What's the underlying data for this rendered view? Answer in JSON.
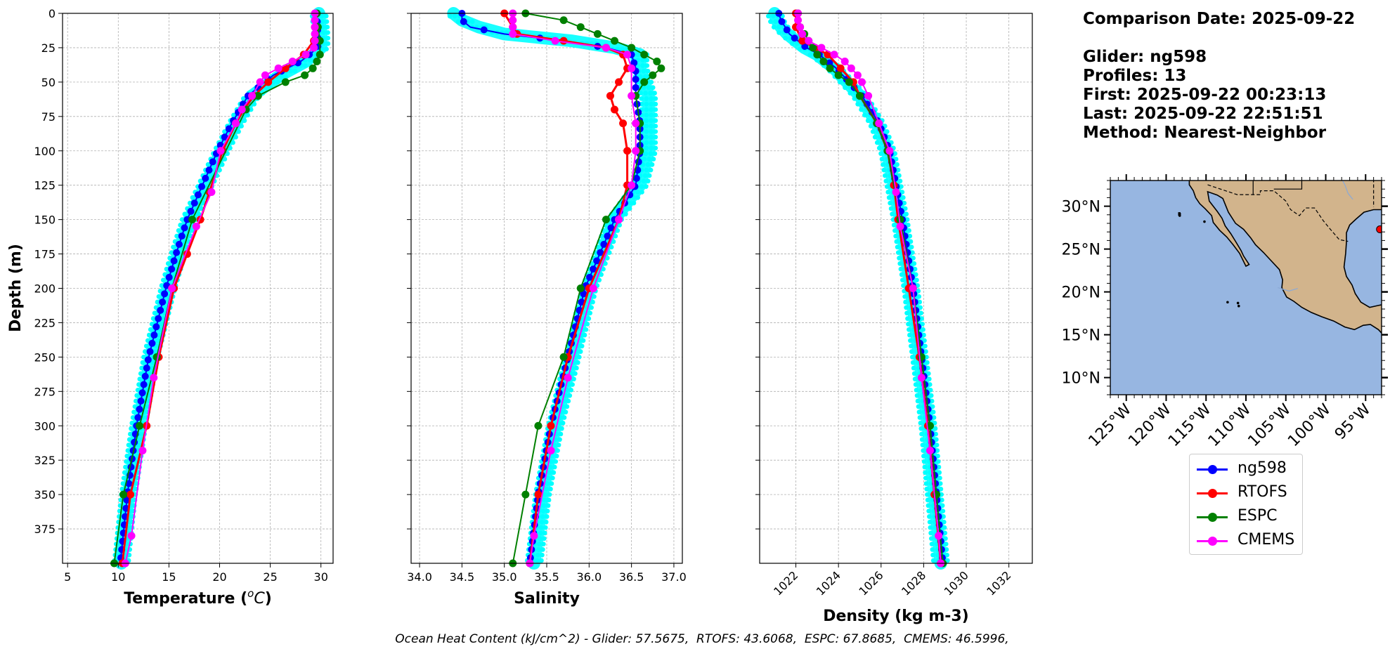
{
  "info": {
    "comparison_date": "Comparison Date: 2025-09-22",
    "glider": "Glider: ng598",
    "profiles": "Profiles: 13",
    "first": "First: 2025-09-22 00:23:13",
    "last": "Last: 2025-09-22 22:51:51",
    "method": "Method: Nearest-Neighbor"
  },
  "ohc": {
    "label": "Ocean Heat Content (kJ/cm^2) - Glider: 57.5675,  RTOFS: 43.6068,  ESPC: 67.8685,  CMEMS: 46.5996,"
  },
  "legend": [
    {
      "name": "ng598",
      "color": "#0000ff"
    },
    {
      "name": "RTOFS",
      "color": "#ff0000"
    },
    {
      "name": "ESPC",
      "color": "#008000"
    },
    {
      "name": "CMEMS",
      "color": "#ff00ff"
    }
  ],
  "chart_data": [
    {
      "type": "line",
      "title": "",
      "xlabel": "Temperature (°C)",
      "ylabel": "Depth (m)",
      "xlim": [
        4.5,
        31.2
      ],
      "ylim": [
        400,
        0
      ],
      "xticks": [
        5,
        10,
        15,
        20,
        25,
        30
      ],
      "yticks": [
        0,
        25,
        50,
        75,
        100,
        125,
        150,
        175,
        200,
        225,
        250,
        275,
        300,
        325,
        350,
        375
      ],
      "grid": true,
      "series": [
        {
          "name": "glider profiles",
          "color": "#00ffff",
          "depth": [
            0,
            15,
            25,
            35,
            45,
            60,
            80,
            100,
            125,
            150,
            175,
            200,
            250,
            300,
            350,
            400
          ],
          "values": [
            29.8,
            30.0,
            30.0,
            28.5,
            26.0,
            23.2,
            21.6,
            20.2,
            18.6,
            17.0,
            15.9,
            14.9,
            13.2,
            12.0,
            11.0,
            10.3
          ]
        },
        {
          "name": "ng598",
          "color": "#0000ff",
          "depth": [
            0,
            15,
            25,
            35,
            45,
            60,
            80,
            100,
            125,
            150,
            175,
            200,
            250,
            300,
            350,
            400
          ],
          "values": [
            29.6,
            29.7,
            29.7,
            28.0,
            25.3,
            22.8,
            21.2,
            19.8,
            18.3,
            16.8,
            15.7,
            14.7,
            13.0,
            11.8,
            10.9,
            10.2
          ]
        },
        {
          "name": "RTOFS",
          "color": "#ff0000",
          "depth": [
            0,
            10,
            20,
            30,
            40,
            50,
            60,
            70,
            80,
            100,
            130,
            150,
            175,
            200,
            250,
            300,
            350,
            400
          ],
          "values": [
            29.5,
            29.4,
            29.3,
            28.3,
            26.5,
            24.8,
            23.4,
            22.4,
            21.6,
            20.3,
            19.0,
            18.1,
            16.8,
            15.5,
            14.0,
            12.8,
            11.2,
            10.4
          ]
        },
        {
          "name": "ESPC",
          "color": "#008000",
          "depth": [
            0,
            10,
            20,
            30,
            35,
            40,
            45,
            50,
            60,
            70,
            150,
            200,
            250,
            300,
            350,
            400
          ],
          "values": [
            29.6,
            29.7,
            29.9,
            29.9,
            29.6,
            29.2,
            28.4,
            26.5,
            23.8,
            22.6,
            17.3,
            15.3,
            13.8,
            12.1,
            10.5,
            9.6
          ]
        },
        {
          "name": "CMEMS",
          "color": "#ff00ff",
          "depth": [
            0,
            5,
            10,
            15,
            20,
            25,
            30,
            35,
            40,
            45,
            50,
            60,
            70,
            80,
            100,
            130,
            155,
            200,
            265,
            318,
            380,
            400
          ],
          "values": [
            29.4,
            29.4,
            29.4,
            29.4,
            29.4,
            29.3,
            28.5,
            27.2,
            25.8,
            24.5,
            24.0,
            23.2,
            22.2,
            21.6,
            20.1,
            19.2,
            17.7,
            15.3,
            13.5,
            12.4,
            11.3,
            10.7
          ]
        }
      ]
    },
    {
      "type": "line",
      "title": "",
      "xlabel": "Salinity",
      "ylabel": "",
      "xlim": [
        33.9,
        37.1
      ],
      "ylim": [
        400,
        0
      ],
      "xticks": [
        34.0,
        34.5,
        35.0,
        35.5,
        36.0,
        36.5,
        37.0
      ],
      "grid": true,
      "series": [
        {
          "name": "glider profiles",
          "color": "#00ffff",
          "depth": [
            0,
            5,
            10,
            15,
            20,
            25,
            30,
            40,
            60,
            80,
            100,
            125,
            150,
            200,
            250,
            300,
            350,
            400
          ],
          "values": [
            34.4,
            34.5,
            34.7,
            35.0,
            35.8,
            36.3,
            36.6,
            36.6,
            36.7,
            36.7,
            36.7,
            36.6,
            36.3,
            36.0,
            35.8,
            35.6,
            35.45,
            35.35
          ]
        },
        {
          "name": "ng598",
          "color": "#0000ff",
          "depth": [
            0,
            5,
            10,
            15,
            20,
            25,
            30,
            40,
            60,
            80,
            100,
            125,
            150,
            200,
            250,
            300,
            350,
            400
          ],
          "values": [
            34.5,
            34.5,
            34.6,
            35.0,
            35.7,
            36.2,
            36.5,
            36.55,
            36.55,
            36.6,
            36.6,
            36.55,
            36.3,
            35.95,
            35.75,
            35.55,
            35.4,
            35.3
          ]
        },
        {
          "name": "RTOFS",
          "color": "#ff0000",
          "depth": [
            0,
            10,
            15,
            20,
            25,
            30,
            40,
            50,
            60,
            70,
            80,
            100,
            125,
            150,
            200,
            250,
            300,
            350,
            400
          ],
          "values": [
            35.0,
            35.1,
            35.15,
            35.7,
            36.2,
            36.4,
            36.45,
            36.35,
            36.25,
            36.3,
            36.4,
            36.45,
            36.45,
            36.35,
            36.0,
            35.75,
            35.55,
            35.4,
            35.3
          ]
        },
        {
          "name": "ESPC",
          "color": "#008000",
          "depth": [
            0,
            5,
            10,
            15,
            20,
            25,
            30,
            35,
            40,
            45,
            50,
            60,
            80,
            100,
            125,
            150,
            200,
            250,
            300,
            350,
            400
          ],
          "values": [
            35.25,
            35.7,
            35.9,
            36.1,
            36.3,
            36.5,
            36.65,
            36.8,
            36.85,
            36.75,
            36.65,
            36.55,
            36.6,
            36.6,
            36.5,
            36.2,
            35.9,
            35.7,
            35.4,
            35.25,
            35.1
          ]
        },
        {
          "name": "CMEMS",
          "color": "#ff00ff",
          "depth": [
            0,
            5,
            10,
            15,
            20,
            25,
            30,
            40,
            60,
            80,
            100,
            125,
            150,
            200,
            265,
            318,
            380,
            400
          ],
          "values": [
            35.1,
            35.1,
            35.1,
            35.1,
            35.6,
            36.2,
            36.45,
            36.5,
            36.5,
            36.55,
            36.55,
            36.5,
            36.35,
            36.05,
            35.75,
            35.55,
            35.35,
            35.3
          ]
        }
      ]
    },
    {
      "type": "line",
      "title": "",
      "xlabel": "Density (kg m-3)",
      "ylabel": "",
      "xlim": [
        1020.3,
        1033.1
      ],
      "ylim": [
        400,
        0
      ],
      "xticks": [
        1022,
        1024,
        1026,
        1028,
        1030,
        1032
      ],
      "grid": true,
      "series": [
        {
          "name": "glider profiles",
          "color": "#00ffff",
          "depth": [
            0,
            5,
            10,
            15,
            20,
            25,
            30,
            40,
            60,
            80,
            100,
            125,
            150,
            200,
            250,
            300,
            350,
            400
          ],
          "values": [
            1021.0,
            1021.1,
            1021.3,
            1021.6,
            1022.0,
            1022.4,
            1023.0,
            1023.8,
            1025.0,
            1025.8,
            1026.3,
            1026.6,
            1026.9,
            1027.4,
            1027.8,
            1028.2,
            1028.5,
            1028.8
          ]
        },
        {
          "name": "ng598",
          "color": "#0000ff",
          "depth": [
            0,
            5,
            10,
            15,
            20,
            25,
            30,
            40,
            60,
            80,
            100,
            125,
            150,
            200,
            250,
            300,
            350,
            400
          ],
          "values": [
            1021.2,
            1021.3,
            1021.5,
            1021.7,
            1022.1,
            1022.5,
            1023.1,
            1023.9,
            1025.1,
            1025.9,
            1026.4,
            1026.7,
            1027.0,
            1027.5,
            1027.9,
            1028.3,
            1028.6,
            1028.9
          ]
        },
        {
          "name": "RTOFS",
          "color": "#ff0000",
          "depth": [
            0,
            10,
            20,
            25,
            30,
            40,
            50,
            60,
            80,
            100,
            125,
            150,
            200,
            250,
            300,
            350,
            400
          ],
          "values": [
            1022.0,
            1022.0,
            1022.3,
            1022.9,
            1023.5,
            1024.1,
            1024.7,
            1025.0,
            1025.8,
            1026.3,
            1026.6,
            1026.8,
            1027.3,
            1027.8,
            1028.2,
            1028.5,
            1028.8
          ]
        },
        {
          "name": "ESPC",
          "color": "#008000",
          "depth": [
            0,
            10,
            15,
            20,
            25,
            30,
            35,
            40,
            45,
            50,
            60,
            80,
            100,
            150,
            200,
            250,
            300,
            350,
            400
          ],
          "values": [
            1022.1,
            1022.2,
            1022.4,
            1022.6,
            1022.8,
            1023.0,
            1023.3,
            1023.6,
            1024.0,
            1024.5,
            1025.0,
            1025.8,
            1026.3,
            1026.9,
            1027.5,
            1027.9,
            1028.3,
            1028.6,
            1028.9
          ]
        },
        {
          "name": "CMEMS",
          "color": "#ff00ff",
          "depth": [
            0,
            5,
            10,
            15,
            20,
            25,
            30,
            35,
            40,
            45,
            50,
            60,
            80,
            100,
            130,
            155,
            200,
            265,
            318,
            380,
            400
          ],
          "values": [
            1022.1,
            1022.1,
            1022.2,
            1022.3,
            1022.6,
            1023.2,
            1023.8,
            1024.3,
            1024.6,
            1024.9,
            1025.1,
            1025.4,
            1025.9,
            1026.4,
            1026.7,
            1026.9,
            1027.5,
            1027.9,
            1028.3,
            1028.7,
            1028.8
          ]
        }
      ]
    },
    {
      "type": "map",
      "xlim": [
        -127,
        -93
      ],
      "ylim": [
        8,
        33
      ],
      "xticklabels": [
        "125°W",
        "120°W",
        "115°W",
        "110°W",
        "105°W",
        "100°W",
        "95°W"
      ],
      "xticks": [
        -125,
        -120,
        -115,
        -110,
        -105,
        -100,
        -95
      ],
      "yticklabels": [
        "30°N",
        "25°N",
        "20°N",
        "15°N",
        "10°N"
      ],
      "yticks": [
        30,
        25,
        20,
        15,
        10
      ],
      "ocean_color": "#97b6e1",
      "land_color": "#d2b48c",
      "marker": {
        "lon": -93.2,
        "lat": 27.3,
        "color": "#ff0000"
      }
    }
  ]
}
